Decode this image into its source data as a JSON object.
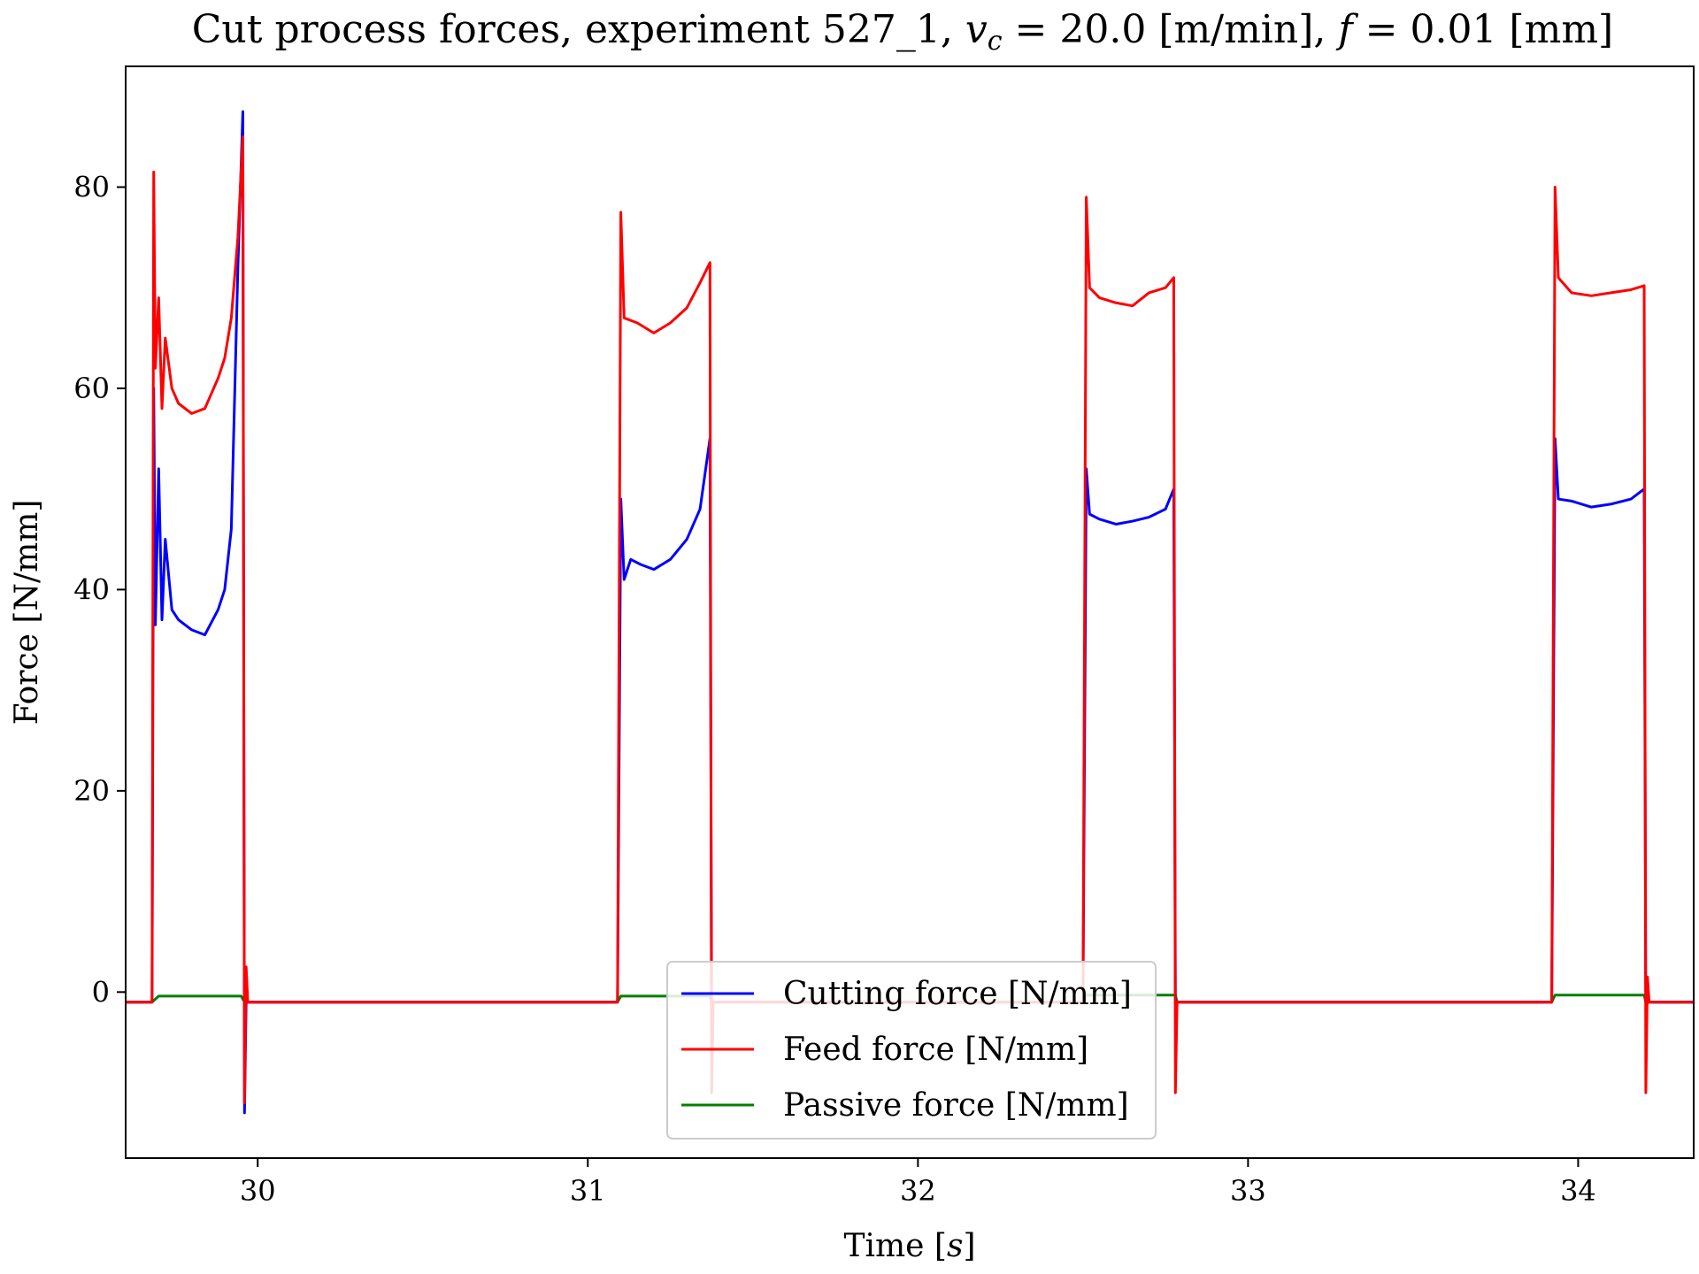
{
  "chart_data": {
    "type": "line",
    "title": {
      "prefix": "Cut process forces, experiment 527_1, ",
      "vc_symbol": "v",
      "vc_sub": "c",
      "vc_value": " = 20.0 [m/min], ",
      "f_symbol": "f",
      "f_value": " = 0.01 [mm]"
    },
    "xlabel": {
      "text": "Time [",
      "italic_symbol": "s",
      "close": "]"
    },
    "ylabel": "Force [N/mm]",
    "xlim": [
      29.6,
      34.35
    ],
    "ylim": [
      -16.5,
      92
    ],
    "x_ticks": [
      30,
      31,
      32,
      33,
      34
    ],
    "y_ticks": [
      0,
      20,
      40,
      60,
      80
    ],
    "grid": false,
    "legend_position": "lower-center",
    "series": [
      {
        "name": "Cutting force [N/mm]",
        "color": "#0000ff",
        "points": [
          [
            29.6,
            -1.0
          ],
          [
            29.68,
            -1.0
          ],
          [
            29.685,
            60
          ],
          [
            29.69,
            36.5
          ],
          [
            29.7,
            52
          ],
          [
            29.71,
            37
          ],
          [
            29.72,
            45
          ],
          [
            29.74,
            38
          ],
          [
            29.76,
            37
          ],
          [
            29.8,
            36
          ],
          [
            29.84,
            35.5
          ],
          [
            29.88,
            38
          ],
          [
            29.9,
            40
          ],
          [
            29.92,
            46
          ],
          [
            29.94,
            72
          ],
          [
            29.955,
            87.5
          ],
          [
            29.96,
            -12
          ],
          [
            29.965,
            -1.0
          ],
          [
            31.09,
            -1.0
          ],
          [
            31.1,
            49
          ],
          [
            31.11,
            41
          ],
          [
            31.13,
            43
          ],
          [
            31.16,
            42.5
          ],
          [
            31.2,
            42
          ],
          [
            31.25,
            43
          ],
          [
            31.3,
            45
          ],
          [
            31.34,
            48
          ],
          [
            31.37,
            55
          ],
          [
            31.375,
            -1.0
          ],
          [
            32.5,
            -1.0
          ],
          [
            32.51,
            52
          ],
          [
            32.52,
            47.5
          ],
          [
            32.55,
            47
          ],
          [
            32.6,
            46.5
          ],
          [
            32.65,
            46.8
          ],
          [
            32.7,
            47.2
          ],
          [
            32.75,
            48
          ],
          [
            32.775,
            50
          ],
          [
            32.78,
            -1.0
          ],
          [
            33.92,
            -1.0
          ],
          [
            33.93,
            55
          ],
          [
            33.94,
            49
          ],
          [
            33.98,
            48.8
          ],
          [
            34.04,
            48.2
          ],
          [
            34.1,
            48.5
          ],
          [
            34.16,
            49
          ],
          [
            34.2,
            50
          ],
          [
            34.205,
            -1.0
          ],
          [
            34.35,
            -1.0
          ]
        ]
      },
      {
        "name": "Feed force [N/mm]",
        "color": "#ff0000",
        "points": [
          [
            29.6,
            -1.0
          ],
          [
            29.68,
            -1.0
          ],
          [
            29.685,
            81.5
          ],
          [
            29.69,
            62
          ],
          [
            29.7,
            69
          ],
          [
            29.71,
            58
          ],
          [
            29.72,
            65
          ],
          [
            29.74,
            60
          ],
          [
            29.76,
            58.5
          ],
          [
            29.8,
            57.5
          ],
          [
            29.84,
            58
          ],
          [
            29.88,
            61
          ],
          [
            29.9,
            63
          ],
          [
            29.92,
            67
          ],
          [
            29.94,
            75
          ],
          [
            29.955,
            85
          ],
          [
            29.96,
            -11
          ],
          [
            29.965,
            2.5
          ],
          [
            29.97,
            -1.0
          ],
          [
            31.09,
            -1.0
          ],
          [
            31.1,
            77.5
          ],
          [
            31.11,
            67
          ],
          [
            31.15,
            66.5
          ],
          [
            31.2,
            65.5
          ],
          [
            31.25,
            66.5
          ],
          [
            31.3,
            68
          ],
          [
            31.34,
            70.5
          ],
          [
            31.37,
            72.5
          ],
          [
            31.375,
            -10
          ],
          [
            31.38,
            -1.0
          ],
          [
            32.5,
            -1.0
          ],
          [
            32.51,
            79
          ],
          [
            32.52,
            70
          ],
          [
            32.55,
            69
          ],
          [
            32.6,
            68.5
          ],
          [
            32.65,
            68.2
          ],
          [
            32.7,
            69.5
          ],
          [
            32.75,
            70
          ],
          [
            32.775,
            71
          ],
          [
            32.78,
            -10
          ],
          [
            32.785,
            -1.0
          ],
          [
            33.92,
            -1.0
          ],
          [
            33.93,
            80
          ],
          [
            33.94,
            71
          ],
          [
            33.98,
            69.5
          ],
          [
            34.04,
            69.2
          ],
          [
            34.1,
            69.5
          ],
          [
            34.16,
            69.8
          ],
          [
            34.2,
            70.2
          ],
          [
            34.205,
            -10
          ],
          [
            34.21,
            1.5
          ],
          [
            34.215,
            -1.0
          ],
          [
            34.35,
            -1.0
          ]
        ]
      },
      {
        "name": "Passive force [N/mm]",
        "color": "#008000",
        "points": [
          [
            29.6,
            -1.0
          ],
          [
            29.68,
            -1.0
          ],
          [
            29.7,
            -0.4
          ],
          [
            29.95,
            -0.4
          ],
          [
            29.96,
            -1.0
          ],
          [
            31.09,
            -1.0
          ],
          [
            31.1,
            -0.4
          ],
          [
            31.37,
            -0.4
          ],
          [
            31.375,
            -1.0
          ],
          [
            32.5,
            -1.0
          ],
          [
            32.51,
            -0.3
          ],
          [
            32.78,
            -0.3
          ],
          [
            32.785,
            -1.0
          ],
          [
            33.92,
            -1.0
          ],
          [
            33.93,
            -0.3
          ],
          [
            34.2,
            -0.3
          ],
          [
            34.205,
            -1.0
          ],
          [
            34.35,
            -1.0
          ]
        ]
      }
    ]
  }
}
